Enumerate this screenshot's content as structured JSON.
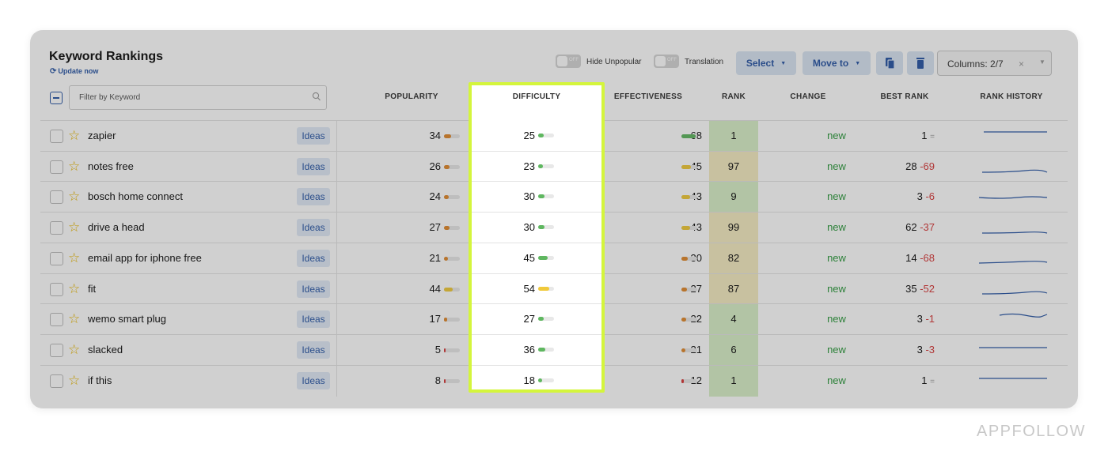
{
  "header": {
    "title": "Keyword Rankings",
    "update_label": "Update now"
  },
  "toolbar": {
    "hide_unpopular": {
      "label": "Hide Unpopular",
      "state": "OFF"
    },
    "translation": {
      "label": "Translation",
      "state": "OFF"
    },
    "select_label": "Select",
    "move_to_label": "Move to",
    "columns_label": "Columns: 2/7",
    "columns_clear": "×"
  },
  "filter": {
    "placeholder": "Filter by Keyword"
  },
  "columns": [
    "POPULARITY",
    "DIFFICULTY",
    "EFFECTIVENESS",
    "RANK",
    "CHANGE",
    "BEST RANK",
    "RANK HISTORY"
  ],
  "rows": [
    {
      "keyword": "zapier",
      "ideas": "Ideas",
      "popularity": 34,
      "difficulty": 25,
      "effectiveness": 68,
      "rank": 1,
      "change": "new",
      "best_rank": 1,
      "best_delta": "",
      "best_eq": "="
    },
    {
      "keyword": "notes free",
      "ideas": "Ideas",
      "popularity": 26,
      "difficulty": 23,
      "effectiveness": 45,
      "rank": 97,
      "change": "new",
      "best_rank": 28,
      "best_delta": "-69",
      "best_eq": ""
    },
    {
      "keyword": "bosch home connect",
      "ideas": "Ideas",
      "popularity": 24,
      "difficulty": 30,
      "effectiveness": 43,
      "rank": 9,
      "change": "new",
      "best_rank": 3,
      "best_delta": "-6",
      "best_eq": ""
    },
    {
      "keyword": "drive a head",
      "ideas": "Ideas",
      "popularity": 27,
      "difficulty": 30,
      "effectiveness": 43,
      "rank": 99,
      "change": "new",
      "best_rank": 62,
      "best_delta": "-37",
      "best_eq": ""
    },
    {
      "keyword": "email app for iphone free",
      "ideas": "Ideas",
      "popularity": 21,
      "difficulty": 45,
      "effectiveness": 30,
      "rank": 82,
      "change": "new",
      "best_rank": 14,
      "best_delta": "-68",
      "best_eq": ""
    },
    {
      "keyword": "fit",
      "ideas": "Ideas",
      "popularity": 44,
      "difficulty": 54,
      "effectiveness": 27,
      "rank": 87,
      "change": "new",
      "best_rank": 35,
      "best_delta": "-52",
      "best_eq": ""
    },
    {
      "keyword": "wemo smart plug",
      "ideas": "Ideas",
      "popularity": 17,
      "difficulty": 27,
      "effectiveness": 22,
      "rank": 4,
      "change": "new",
      "best_rank": 3,
      "best_delta": "-1",
      "best_eq": ""
    },
    {
      "keyword": "slacked",
      "ideas": "Ideas",
      "popularity": 5,
      "difficulty": 36,
      "effectiveness": 21,
      "rank": 6,
      "change": "new",
      "best_rank": 3,
      "best_delta": "-3",
      "best_eq": ""
    },
    {
      "keyword": "if this",
      "ideas": "Ideas",
      "popularity": 8,
      "difficulty": 18,
      "effectiveness": 12,
      "rank": 1,
      "change": "new",
      "best_rank": 1,
      "best_delta": "",
      "best_eq": "="
    }
  ],
  "colors": {
    "accent": "#2b58a6",
    "highlight_border": "#d4f53c",
    "bar_green": "#5fb760",
    "bar_orange": "#e0892e",
    "bar_yellow": "#f0c93a",
    "bar_red": "#d83b3b",
    "rank_good": "#d9f0c8",
    "rank_bad": "#f5ecc2"
  },
  "brand": "APPFOLLOW"
}
